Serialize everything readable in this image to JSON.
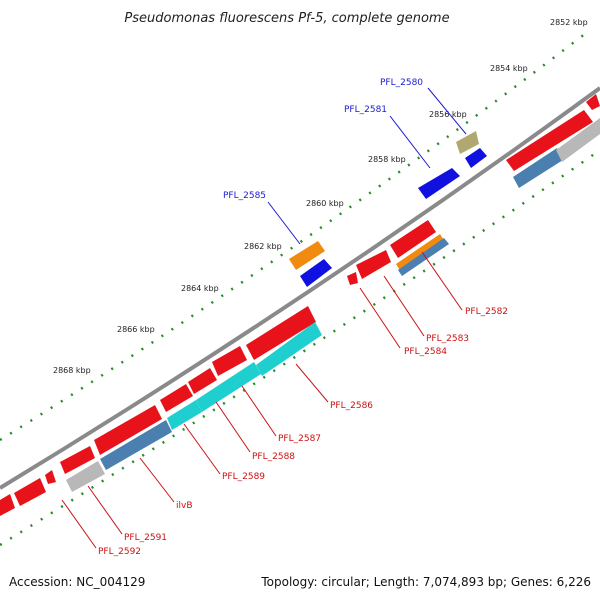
{
  "title": "Pseudomonas fluorescens Pf-5, complete genome",
  "footer": {
    "accession": "Accession: NC_004129",
    "summary": "Topology: circular; Length: 7,074,893 bp; Genes: 6,226"
  },
  "ticks": [
    "2852 kbp",
    "2854 kbp",
    "2856 kbp",
    "2858 kbp",
    "2860 kbp",
    "2862 kbp",
    "2864 kbp",
    "2866 kbp",
    "2868 kbp"
  ],
  "labels": {
    "pfl2580": "PFL_2580",
    "pfl2581": "PFL_2581",
    "pfl2585": "PFL_2585",
    "pfl2582": "PFL_2582",
    "pfl2583": "PFL_2583",
    "pfl2584": "PFL_2584",
    "pfl2586": "PFL_2586",
    "pfl2587": "PFL_2587",
    "pfl2588": "PFL_2588",
    "pfl2589": "PFL_2589",
    "ilvB": "ilvB",
    "pfl2591": "PFL_2591",
    "pfl2592": "PFL_2592"
  },
  "colors": {
    "backbone": "#8a8a8a",
    "cds": "#e8121a",
    "cyan": "#1fcfcf",
    "steel": "#4a7fb0",
    "gray": "#b8b8b8",
    "blue": "#1010e0",
    "orange": "#f08a10",
    "olive": "#b0a870",
    "tick_dots": "#2a8a2a",
    "label_blue": "#1a1ad0",
    "label_red": "#cc1111"
  }
}
